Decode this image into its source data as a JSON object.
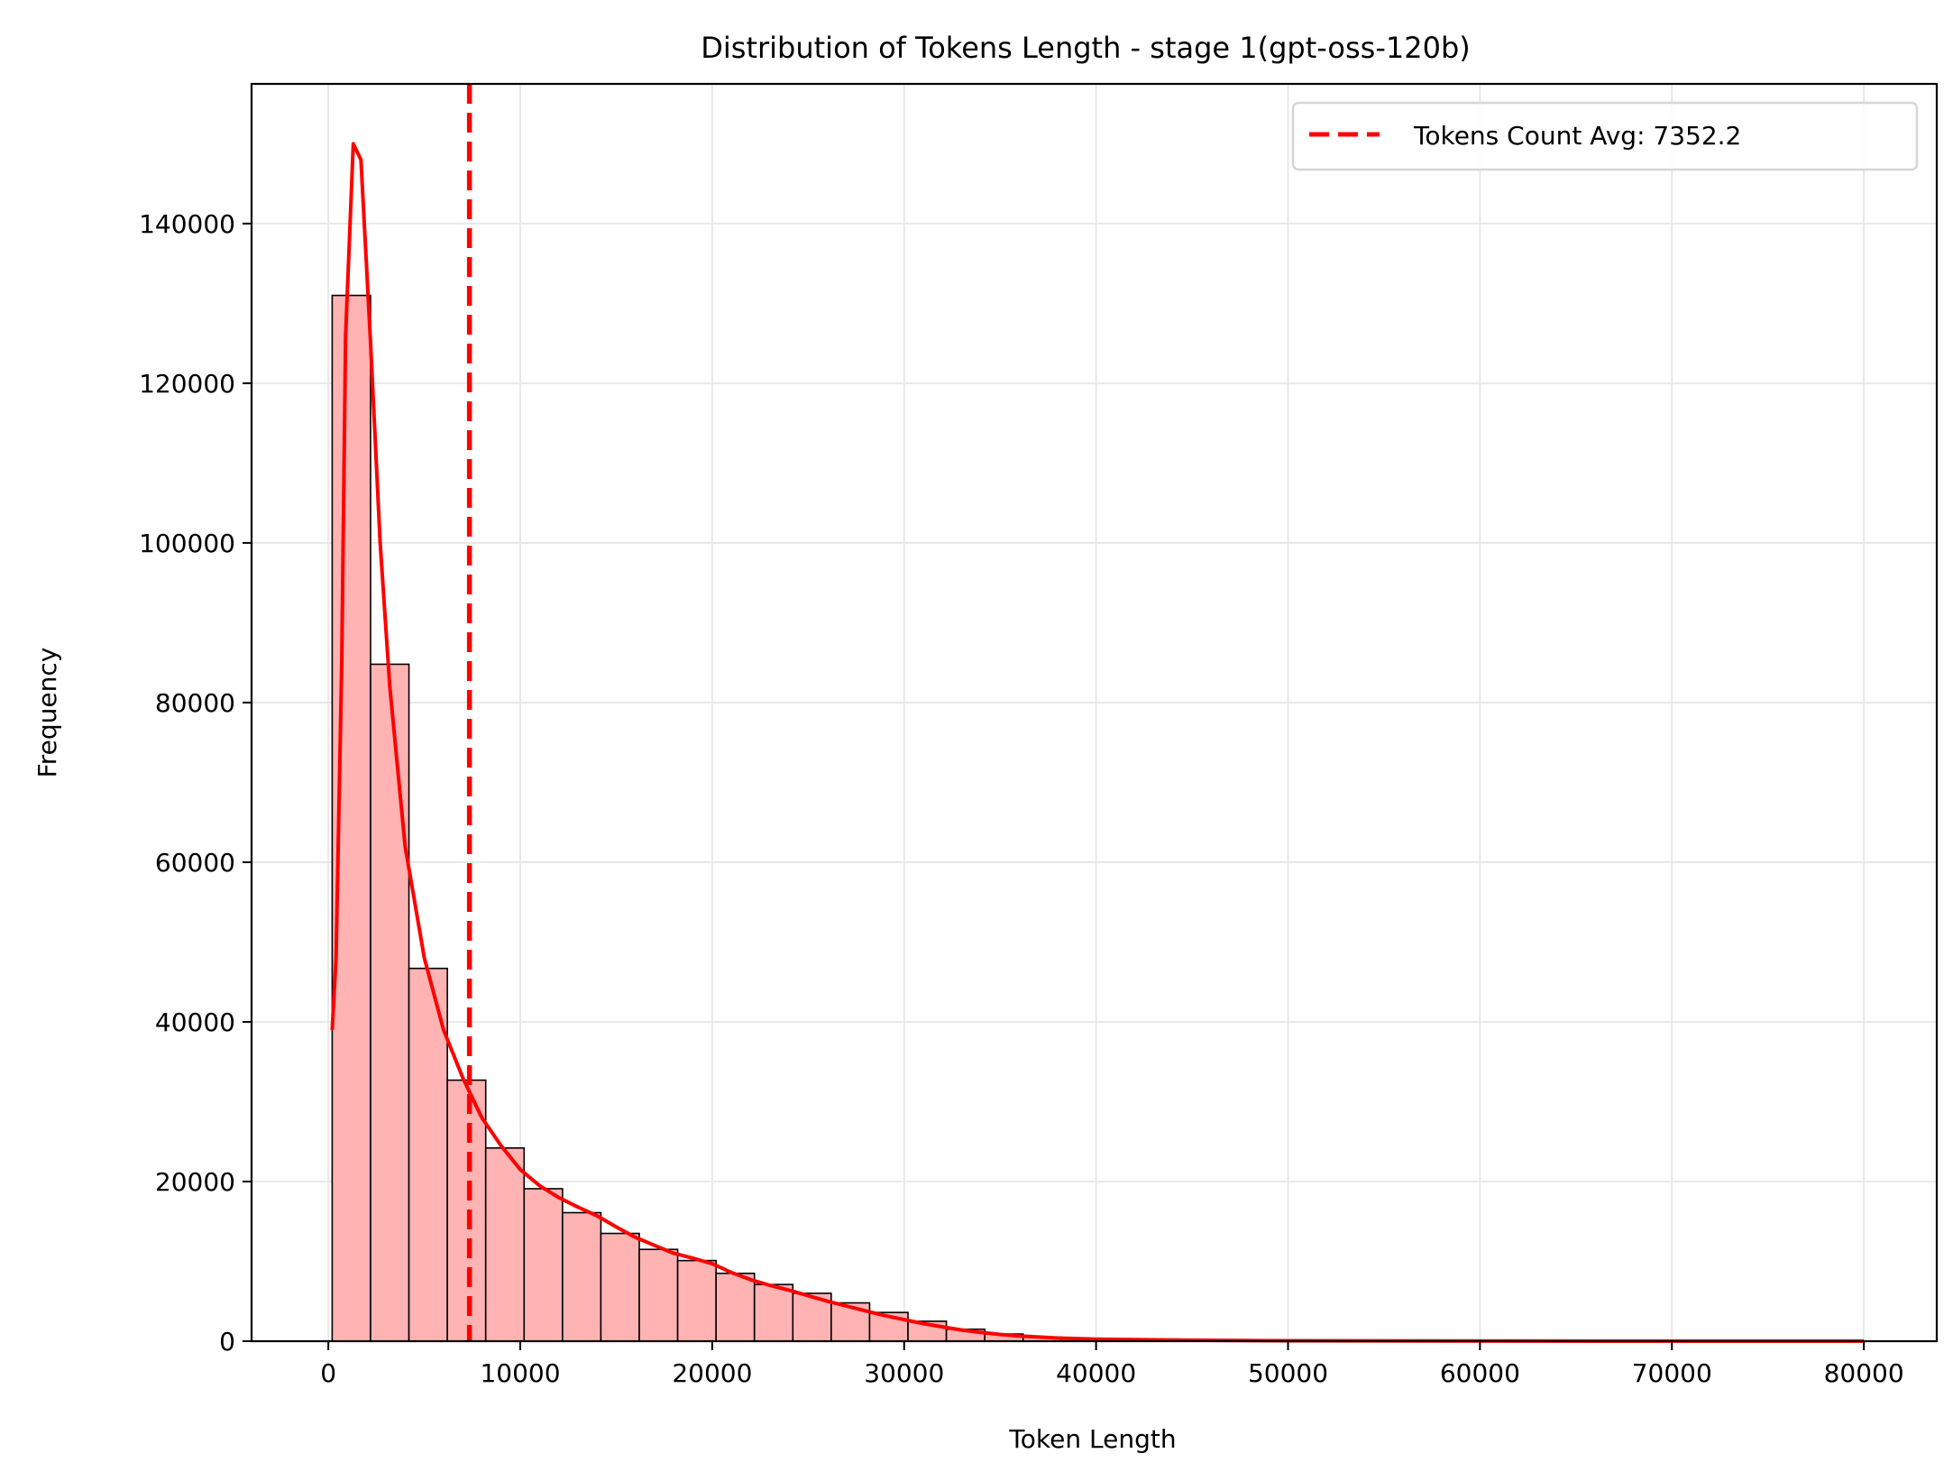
{
  "chart_data": {
    "type": "bar",
    "subtype": "histogram_with_kde",
    "title": "Distribution of Tokens Length - stage 1(gpt-oss-120b)",
    "xlabel": "Token Length",
    "ylabel": "Frequency",
    "xlim": [
      -4000,
      83800
    ],
    "ylim": [
      0,
      157500
    ],
    "xticks": [
      0,
      10000,
      20000,
      30000,
      40000,
      50000,
      60000,
      70000,
      80000
    ],
    "xtick_labels": [
      "0",
      "10000",
      "20000",
      "30000",
      "40000",
      "50000",
      "60000",
      "70000",
      "80000"
    ],
    "yticks": [
      0,
      20000,
      40000,
      60000,
      80000,
      100000,
      120000,
      140000
    ],
    "ytick_labels": [
      "0",
      "20000",
      "40000",
      "60000",
      "80000",
      "100000",
      "120000",
      "140000"
    ],
    "grid": true,
    "legend_position": "upper right",
    "bin_width": 2000,
    "bin_start": 200,
    "bins": [
      {
        "x0": 200,
        "x1": 2200,
        "count": 131000
      },
      {
        "x0": 2200,
        "x1": 4200,
        "count": 84800
      },
      {
        "x0": 4200,
        "x1": 6200,
        "count": 46700
      },
      {
        "x0": 6200,
        "x1": 8200,
        "count": 32700
      },
      {
        "x0": 8200,
        "x1": 10200,
        "count": 24200
      },
      {
        "x0": 10200,
        "x1": 12200,
        "count": 19100
      },
      {
        "x0": 12200,
        "x1": 14200,
        "count": 16100
      },
      {
        "x0": 14200,
        "x1": 16200,
        "count": 13500
      },
      {
        "x0": 16200,
        "x1": 18200,
        "count": 11500
      },
      {
        "x0": 18200,
        "x1": 20200,
        "count": 10100
      },
      {
        "x0": 20200,
        "x1": 22200,
        "count": 8500
      },
      {
        "x0": 22200,
        "x1": 24200,
        "count": 7100
      },
      {
        "x0": 24200,
        "x1": 26200,
        "count": 6000
      },
      {
        "x0": 26200,
        "x1": 28200,
        "count": 4800
      },
      {
        "x0": 28200,
        "x1": 30200,
        "count": 3600
      },
      {
        "x0": 30200,
        "x1": 32200,
        "count": 2500
      },
      {
        "x0": 32200,
        "x1": 34200,
        "count": 1500
      },
      {
        "x0": 34200,
        "x1": 36200,
        "count": 900
      },
      {
        "x0": 36200,
        "x1": 38200,
        "count": 500
      },
      {
        "x0": 38200,
        "x1": 40200,
        "count": 300
      },
      {
        "x0": 40200,
        "x1": 42200,
        "count": 150
      }
    ],
    "kde": {
      "name": "KDE",
      "color": "#ff0000",
      "points": [
        [
          200,
          39000
        ],
        [
          400,
          48000
        ],
        [
          700,
          85000
        ],
        [
          900,
          126000
        ],
        [
          1300,
          150000
        ],
        [
          1700,
          148000
        ],
        [
          2200,
          125000
        ],
        [
          2700,
          100000
        ],
        [
          3200,
          82000
        ],
        [
          4000,
          62000
        ],
        [
          5000,
          48000
        ],
        [
          6000,
          39000
        ],
        [
          7000,
          33000
        ],
        [
          8000,
          28000
        ],
        [
          9000,
          24500
        ],
        [
          10000,
          21500
        ],
        [
          11000,
          19500
        ],
        [
          12000,
          18000
        ],
        [
          13000,
          16800
        ],
        [
          14000,
          15700
        ],
        [
          15000,
          14300
        ],
        [
          16000,
          13000
        ],
        [
          17000,
          12000
        ],
        [
          18000,
          11000
        ],
        [
          19000,
          10400
        ],
        [
          20000,
          9700
        ],
        [
          21000,
          8600
        ],
        [
          22000,
          7700
        ],
        [
          23000,
          7000
        ],
        [
          24000,
          6400
        ],
        [
          25000,
          5700
        ],
        [
          26000,
          5000
        ],
        [
          27000,
          4400
        ],
        [
          28000,
          3800
        ],
        [
          29000,
          3200
        ],
        [
          30000,
          2700
        ],
        [
          31000,
          2200
        ],
        [
          32000,
          1800
        ],
        [
          33000,
          1400
        ],
        [
          34000,
          1100
        ],
        [
          35000,
          850
        ],
        [
          36000,
          650
        ],
        [
          38000,
          400
        ],
        [
          40000,
          250
        ],
        [
          45000,
          120
        ],
        [
          50000,
          60
        ],
        [
          60000,
          25
        ],
        [
          70000,
          15
        ],
        [
          80000,
          10
        ]
      ]
    },
    "series": [
      {
        "name": "Frequency",
        "color": "#ffb3b3",
        "edgecolor": "#000000"
      }
    ],
    "annotations": [
      {
        "type": "vline",
        "x": 7352.2,
        "style": "dashed",
        "color": "#ff0000",
        "label": "Tokens Count Avg: 7352.2"
      }
    ],
    "legend": [
      {
        "label": "Tokens Count Avg: 7352.2",
        "color": "#ff0000",
        "style": "dashed"
      }
    ]
  },
  "colors": {
    "bar_fill": "#ffb3b3",
    "bar_edge": "#000000",
    "kde_line": "#ff0000",
    "mean_line": "#ff0000",
    "grid": "#e6e6e6",
    "legend_border": "#d6d6d6"
  }
}
